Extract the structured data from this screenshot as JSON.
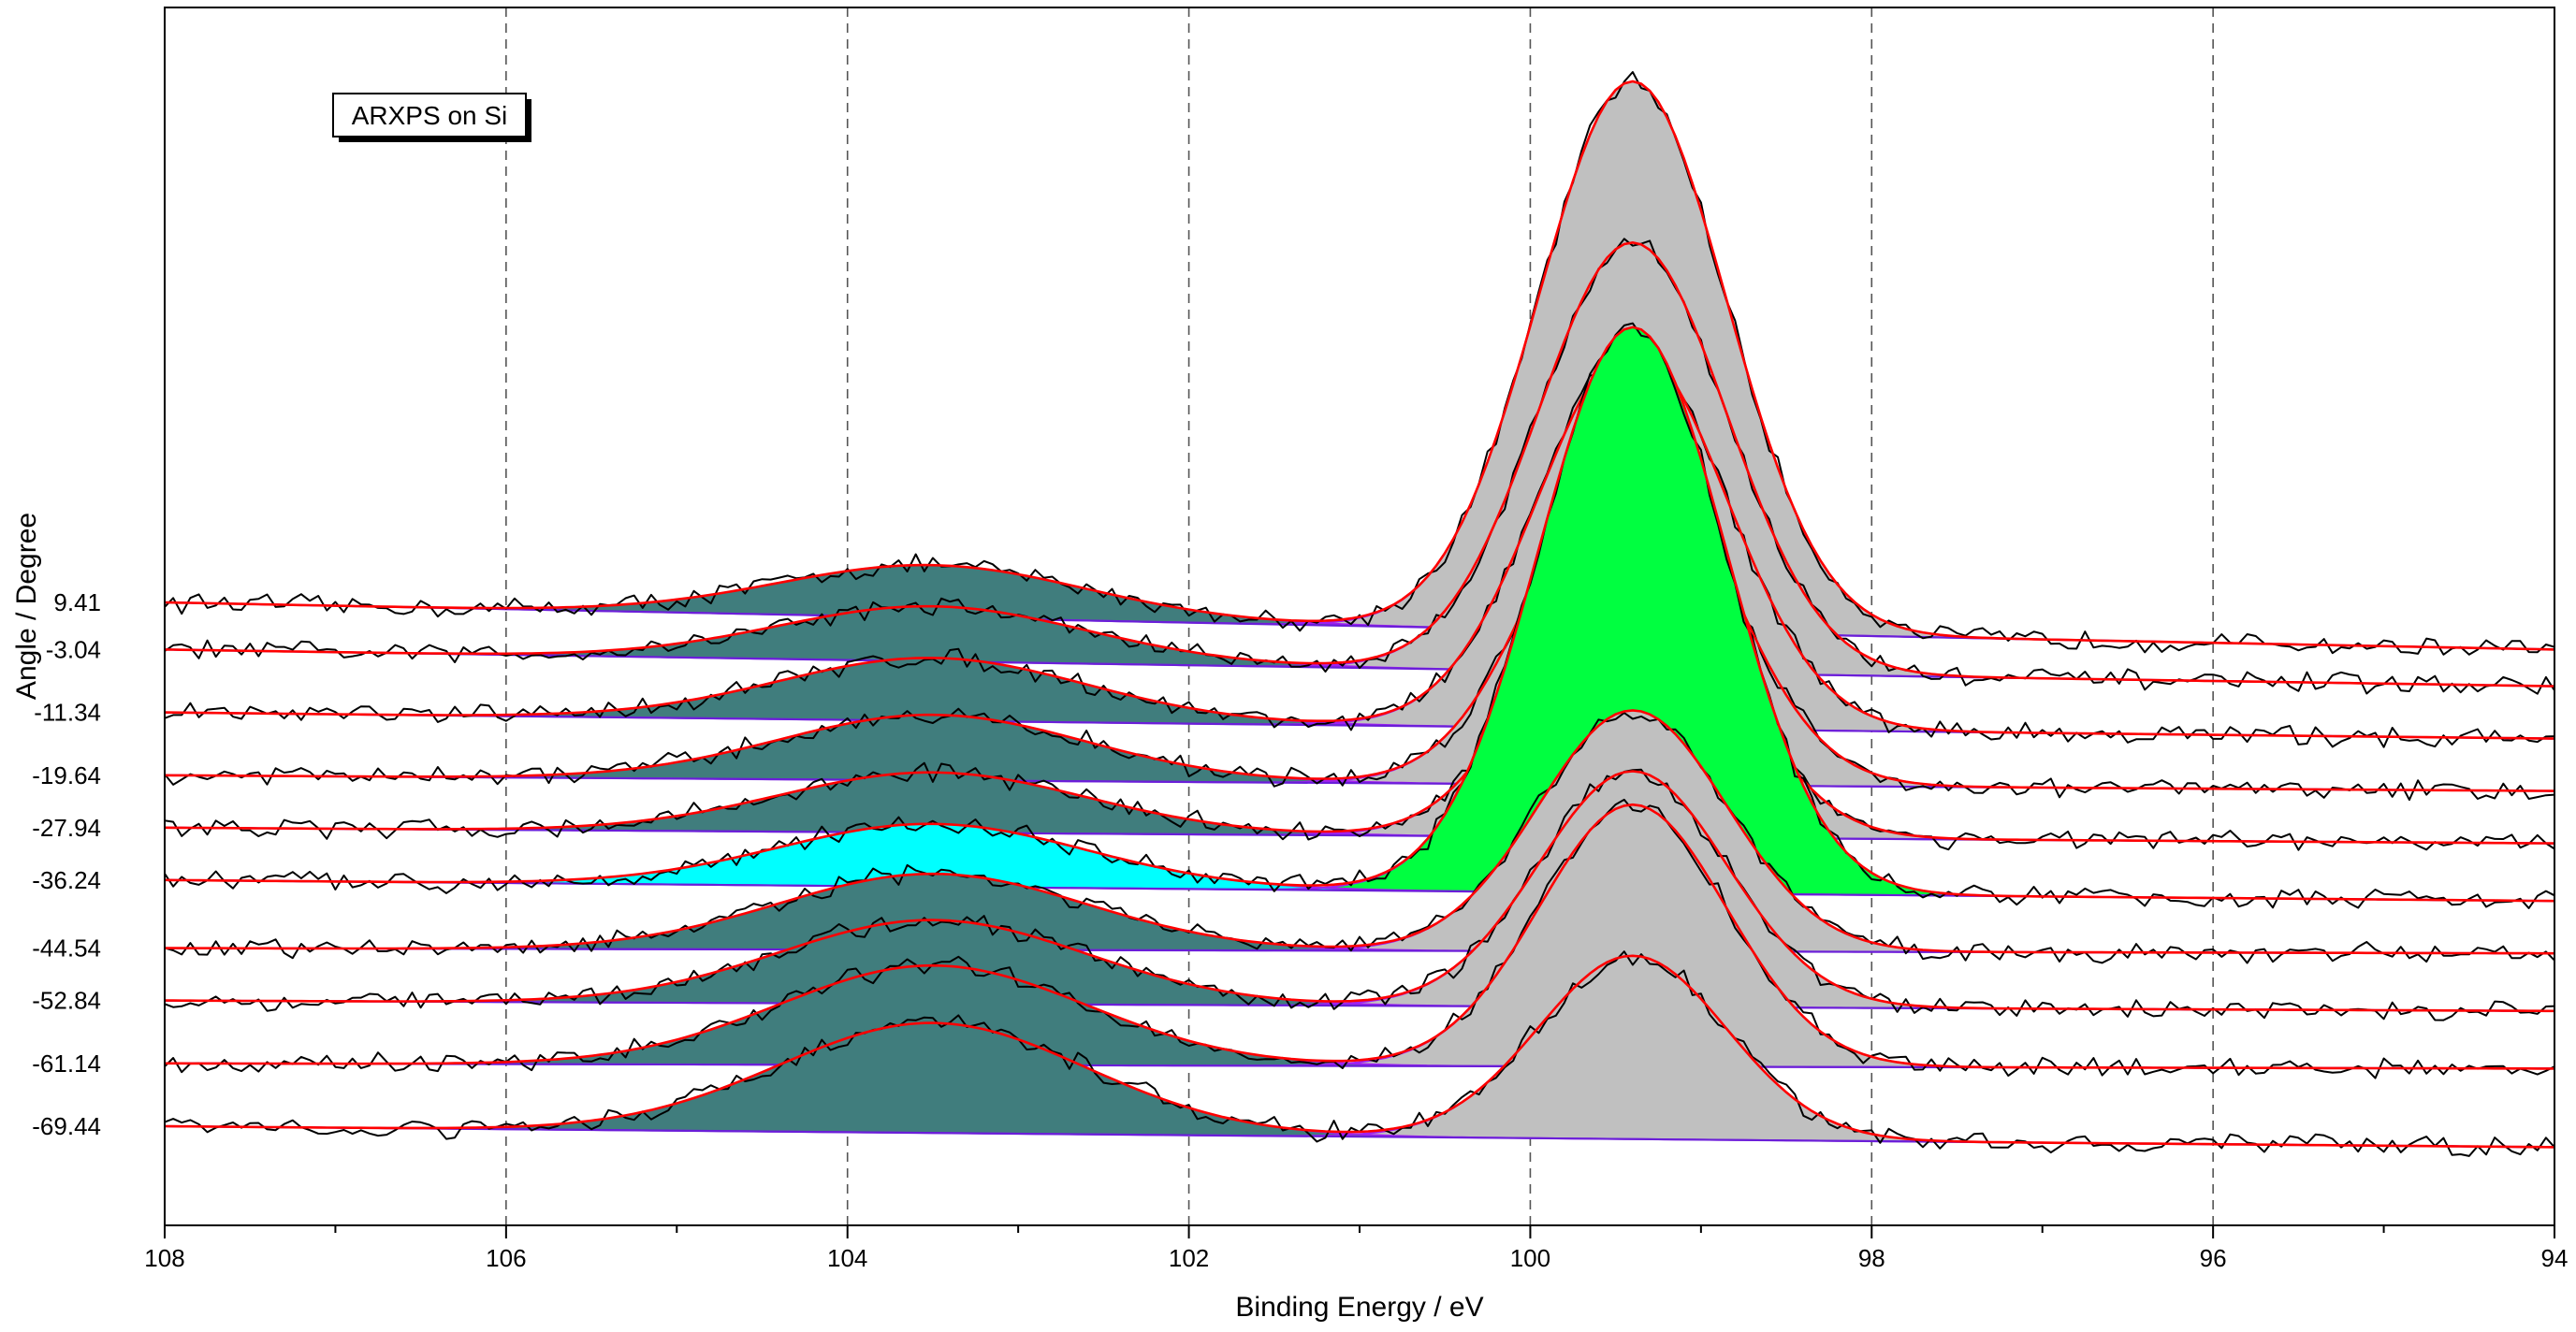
{
  "chart_data": {
    "type": "area",
    "title": "",
    "annotation": "ARXPS on Si",
    "xlabel": "Binding Energy / eV",
    "ylabel": "Angle / Degree",
    "xlim": [
      108,
      94
    ],
    "x_reversed": true,
    "x_ticks": [
      "108",
      "106",
      "104",
      "102",
      "100",
      "98",
      "96",
      "94"
    ],
    "grid_x": true,
    "grid_y": false,
    "components": {
      "oxide_center": 103.5,
      "oxide_sigma": 0.9,
      "substrate_center": 99.4,
      "substrate_sigma": 0.55,
      "colors": {
        "oxide_fill": "#407D7D",
        "substrate_fill": "#C0C0C0",
        "highlight_oxide_fill": "#00FFFF",
        "highlight_substrate_fill": "#00FF40",
        "envelope": "#FF0000",
        "background": "#6A1ED8",
        "component_outline": "#A020F0",
        "raw_data": "#000000",
        "grid": "#555555"
      }
    },
    "series": [
      {
        "name": "9.41",
        "baseline_left": 0.5,
        "baseline_right": -0.4,
        "oxide_peak": 1.0,
        "substrate_peak": 10.5
      },
      {
        "name": "-3.04",
        "baseline_left": -0.4,
        "baseline_right": -1.1,
        "oxide_peak": 1.05,
        "substrate_peak": 8.2
      },
      {
        "name": "-11.34",
        "baseline_left": -1.6,
        "baseline_right": -2.1,
        "oxide_peak": 1.2,
        "substrate_peak": 7.3
      },
      {
        "name": "-19.64",
        "baseline_left": -2.8,
        "baseline_right": -3.1,
        "oxide_peak": 1.25,
        "substrate_peak": 6.6
      },
      {
        "name": "-27.94",
        "baseline_left": -3.8,
        "baseline_right": -4.1,
        "oxide_peak": 1.15,
        "substrate_peak": 5.8
      },
      {
        "name": "-36.24",
        "baseline_left": -4.8,
        "baseline_right": -5.2,
        "oxide_peak": 1.2,
        "substrate_peak": 10.8,
        "highlight": true
      },
      {
        "name": "-44.54",
        "baseline_left": -6.1,
        "baseline_right": -6.2,
        "oxide_peak": 1.45,
        "substrate_peak": 4.6
      },
      {
        "name": "-52.84",
        "baseline_left": -7.1,
        "baseline_right": -7.3,
        "oxide_peak": 1.6,
        "substrate_peak": 4.5
      },
      {
        "name": "-61.14",
        "baseline_left": -8.3,
        "baseline_right": -8.4,
        "oxide_peak": 1.9,
        "substrate_peak": 5.0
      },
      {
        "name": "-69.44",
        "baseline_left": -9.5,
        "baseline_right": -9.9,
        "oxide_peak": 2.1,
        "substrate_peak": 3.5
      }
    ]
  }
}
